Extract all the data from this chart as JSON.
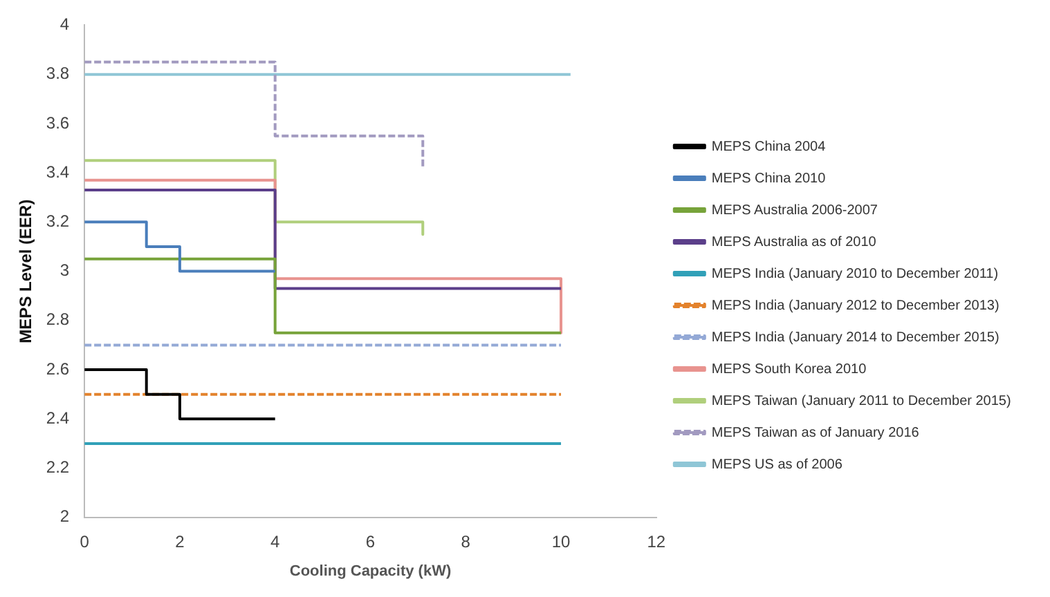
{
  "chart_data": {
    "type": "line",
    "xlabel": "Cooling Capacity (kW)",
    "ylabel": "MEPS Level (EER)",
    "xlim": [
      0,
      12
    ],
    "xticks": [
      0,
      2,
      4,
      6,
      8,
      10,
      12
    ],
    "ylim": [
      2,
      4
    ],
    "yticks": [
      2,
      2.2,
      2.4,
      2.6,
      2.8,
      3,
      3.2,
      3.4,
      3.6,
      3.8,
      4
    ],
    "grid": false,
    "legend": "right",
    "marker": "none",
    "series": [
      {
        "name": "MEPS China 2004",
        "color": "#000000",
        "line_style": "solid",
        "x": [
          0,
          1.3,
          1.3,
          2,
          2,
          4
        ],
        "values": [
          2.6,
          2.6,
          2.5,
          2.5,
          2.4,
          2.4
        ]
      },
      {
        "name": "MEPS China 2010",
        "color": "#4a7ebb",
        "line_style": "solid",
        "x": [
          0,
          1.3,
          1.3,
          2,
          2,
          4
        ],
        "values": [
          3.2,
          3.2,
          3.1,
          3.1,
          3.0,
          3.0
        ]
      },
      {
        "name": "MEPS Australia 2006-2007",
        "color": "#77a33a",
        "line_style": "solid",
        "x": [
          0,
          4,
          4,
          10
        ],
        "values": [
          3.05,
          3.05,
          2.75,
          2.75
        ]
      },
      {
        "name": "MEPS Australia as of 2010",
        "color": "#5b3f8a",
        "line_style": "solid",
        "x": [
          0,
          4,
          4,
          10
        ],
        "values": [
          3.33,
          3.33,
          2.93,
          2.93
        ]
      },
      {
        "name": "MEPS India (January 2010 to December 2011)",
        "color": "#31a0b8",
        "line_style": "solid",
        "x": [
          0,
          10
        ],
        "values": [
          2.3,
          2.3
        ]
      },
      {
        "name": "MEPS India (January 2012 to December 2013)",
        "color": "#e3822c",
        "line_style": "dashed",
        "x": [
          0,
          10
        ],
        "values": [
          2.5,
          2.5
        ]
      },
      {
        "name": "MEPS India (January 2014 to December 2015)",
        "color": "#94a9d6",
        "line_style": "dashed",
        "x": [
          0,
          10
        ],
        "values": [
          2.7,
          2.7
        ]
      },
      {
        "name": "MEPS South Korea 2010",
        "color": "#e8938f",
        "line_style": "solid",
        "x": [
          0,
          4,
          4,
          10,
          10
        ],
        "values": [
          3.37,
          3.37,
          2.97,
          2.97,
          2.75
        ]
      },
      {
        "name": "MEPS Taiwan (January 2011 to December 2015)",
        "color": "#b0cf7c",
        "line_style": "solid",
        "x": [
          0,
          4,
          4,
          7.1,
          7.1
        ],
        "values": [
          3.45,
          3.45,
          3.2,
          3.2,
          3.15
        ]
      },
      {
        "name": "MEPS Taiwan as of January 2016",
        "color": "#a29ac0",
        "line_style": "dashed",
        "x": [
          0,
          4,
          4,
          7.1,
          7.1
        ],
        "values": [
          3.85,
          3.85,
          3.55,
          3.55,
          3.42
        ]
      },
      {
        "name": "MEPS US as of 2006",
        "color": "#8fc6d6",
        "line_style": "solid",
        "x": [
          0,
          10.2
        ],
        "values": [
          3.8,
          3.8
        ]
      }
    ]
  }
}
